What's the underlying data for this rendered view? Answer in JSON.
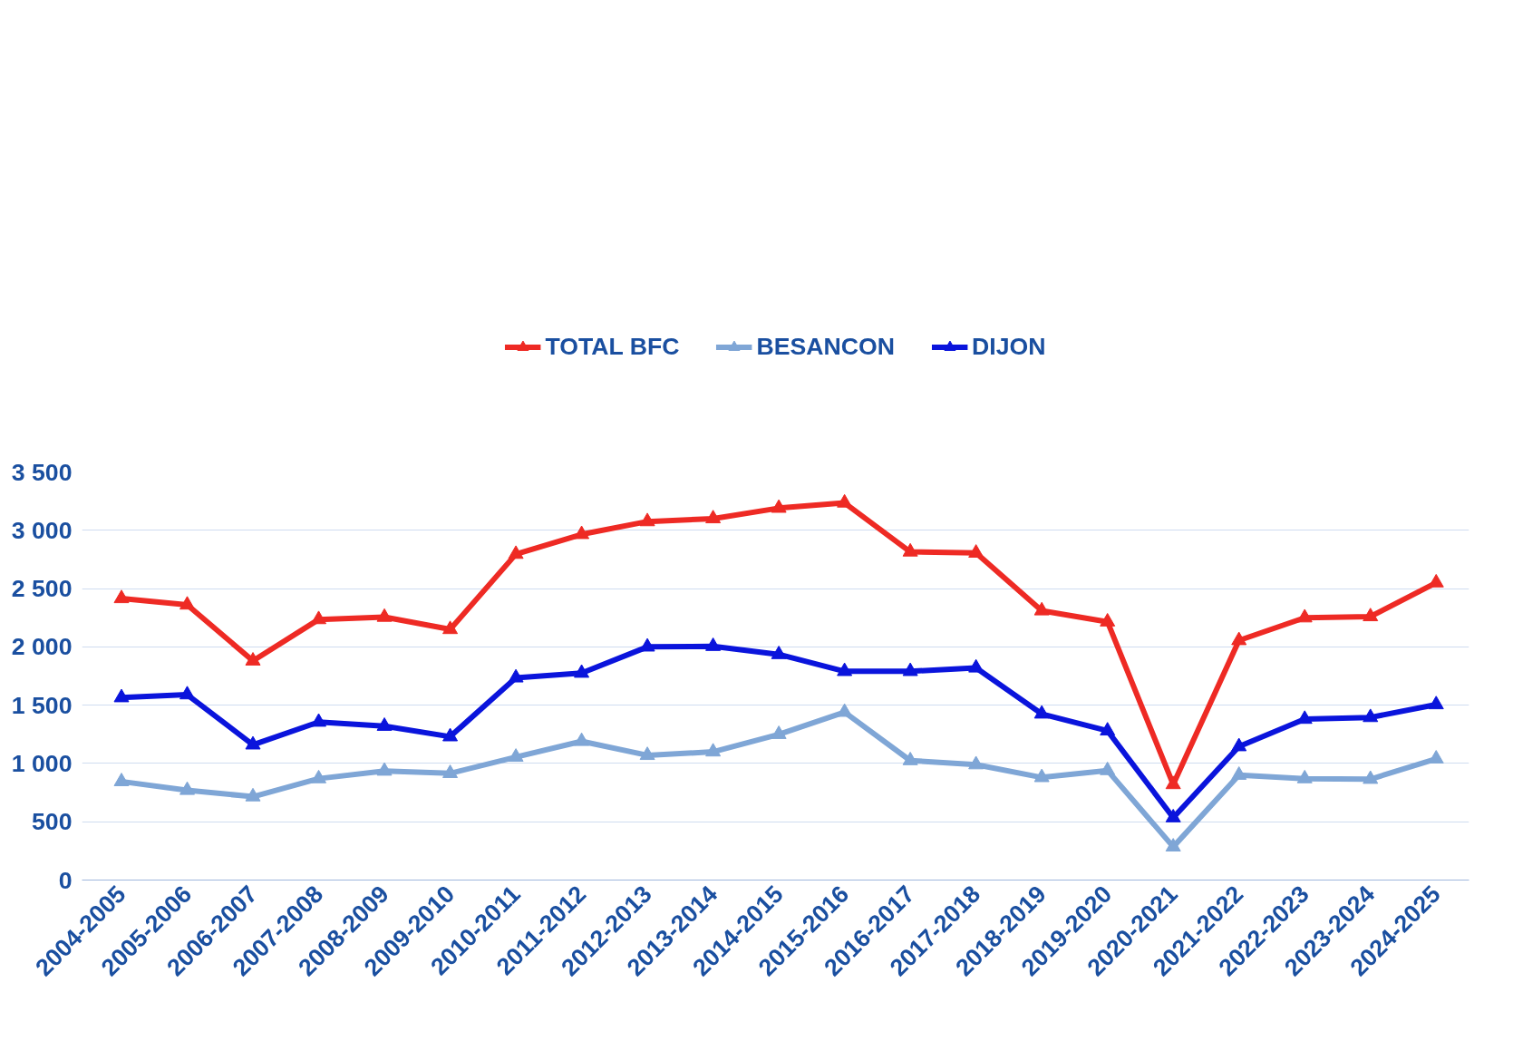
{
  "chart_data": {
    "type": "line",
    "categories": [
      "2004-2005",
      "2005-2006",
      "2006-2007",
      "2007-2008",
      "2008-2009",
      "2009-2010",
      "2010-2011",
      "2011-2012",
      "2012-2013",
      "2013-2014",
      "2014-2015",
      "2015-2016",
      "2016-2017",
      "2017-2018",
      "2018-2019",
      "2019-2020",
      "2020-2021",
      "2021-2022",
      "2022-2023",
      "2023-2024",
      "2024-2025"
    ],
    "series": [
      {
        "name": "TOTAL BFC",
        "color": "#ee2a24",
        "values": [
          2415,
          2360,
          1880,
          2235,
          2255,
          2150,
          2795,
          2965,
          3075,
          3100,
          3190,
          3235,
          2815,
          2805,
          2310,
          2215,
          820,
          2055,
          2250,
          2260,
          2550
        ]
      },
      {
        "name": "BESANCON",
        "color": "#7fa6d6",
        "values": [
          845,
          770,
          715,
          870,
          935,
          915,
          1055,
          1190,
          1070,
          1100,
          1250,
          1440,
          1025,
          990,
          880,
          940,
          285,
          900,
          870,
          865,
          1040
        ]
      },
      {
        "name": "DIJON",
        "color": "#0a14dc",
        "values": [
          1565,
          1590,
          1160,
          1355,
          1320,
          1230,
          1735,
          1775,
          2000,
          2005,
          1935,
          1790,
          1790,
          1820,
          1425,
          1280,
          535,
          1145,
          1380,
          1395,
          1505
        ]
      }
    ],
    "ylim": [
      0,
      3500
    ],
    "yticks": [
      {
        "value": 0,
        "label": "0"
      },
      {
        "value": 500,
        "label": "500"
      },
      {
        "value": 1000,
        "label": "1 000"
      },
      {
        "value": 1500,
        "label": "1 500"
      },
      {
        "value": 2000,
        "label": "2 000"
      },
      {
        "value": 2500,
        "label": "2 500"
      },
      {
        "value": 3000,
        "label": "3 000"
      },
      {
        "value": 3500,
        "label": "3 500"
      }
    ],
    "grid": "y",
    "legend": "top",
    "marker": "triangle",
    "line_style": "solid"
  }
}
